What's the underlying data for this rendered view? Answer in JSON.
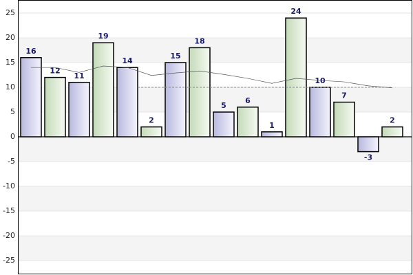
{
  "chart_data": {
    "type": "bar",
    "categories": [
      null,
      null,
      null,
      null,
      null,
      null,
      null,
      null,
      null,
      null,
      null,
      null,
      null,
      null,
      null,
      null
    ],
    "values": [
      16,
      12,
      11,
      19,
      14,
      2,
      15,
      18,
      5,
      6,
      1,
      24,
      10,
      7,
      -3,
      2
    ],
    "colors": [
      "#d8d8f0",
      "#dcead2"
    ],
    "trend": [
      14,
      14,
      13,
      14.3,
      14,
      12.4,
      12.9,
      13.3,
      12.6,
      11.8,
      10.8,
      11.8,
      11.4,
      11.1,
      10.3,
      9.9
    ],
    "reference_line": 10,
    "ylim": [
      -27.5,
      27.5
    ],
    "yticks": [
      -25,
      -20,
      -15,
      -10,
      -5,
      0,
      5,
      10,
      15,
      20,
      25
    ],
    "grid": true
  }
}
